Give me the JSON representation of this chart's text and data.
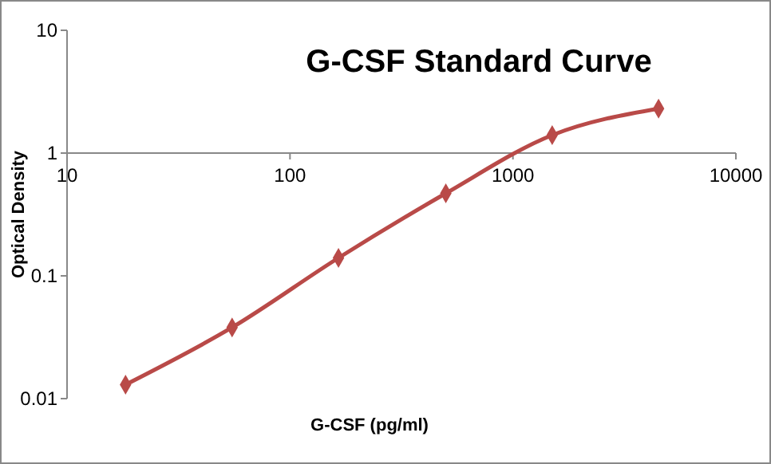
{
  "chart_data": {
    "type": "line",
    "title": "G-CSF Standard Curve",
    "xlabel": "G-CSF (pg/ml)",
    "ylabel": "Optical Density",
    "log": "xy",
    "x": [
      18.3,
      55,
      165,
      500,
      1500,
      4500
    ],
    "series": [
      {
        "color": "#b94a48",
        "values": [
          0.013,
          0.038,
          0.14,
          0.47,
          1.4,
          2.3
        ]
      }
    ],
    "xlim": [
      10,
      10000
    ],
    "xticks": [
      10,
      100,
      1000,
      10000
    ],
    "ylim": [
      0.01,
      10
    ],
    "yticks": [
      0.01,
      0.1,
      1,
      10
    ],
    "marker": "diamond",
    "line_style": "solid",
    "grid": false
  }
}
